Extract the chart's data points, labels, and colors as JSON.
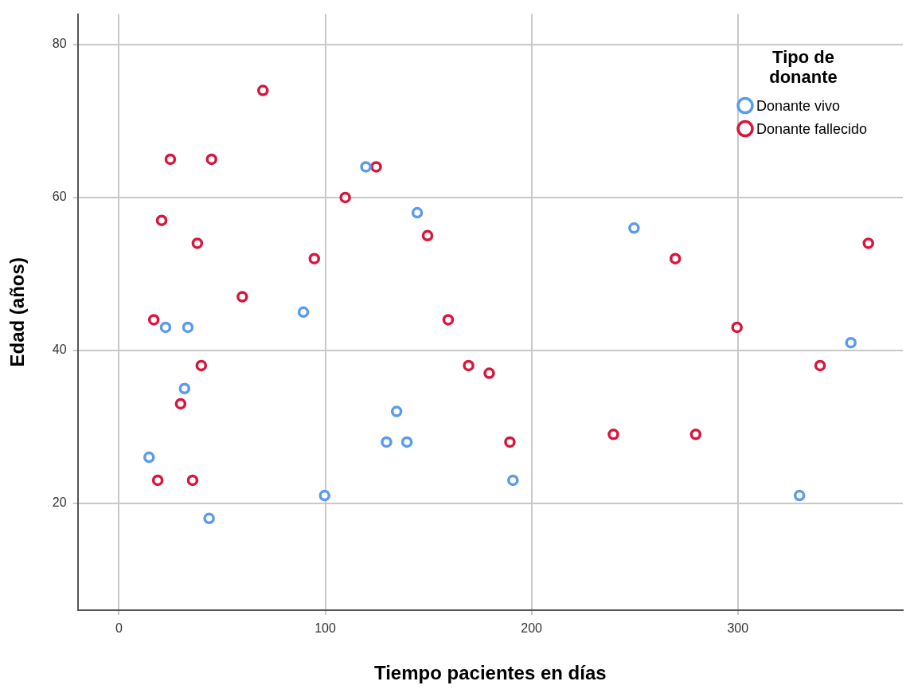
{
  "chart_data": {
    "type": "scatter",
    "xlabel": "Tiempo pacientes en días",
    "ylabel": "Edad (años)",
    "legend_title": "Tipo de donante",
    "xlim": [
      -20,
      380
    ],
    "ylim": [
      6,
      84
    ],
    "xticks": [
      0,
      100,
      200,
      300
    ],
    "yticks": [
      20,
      40,
      60,
      80
    ],
    "grid": true,
    "legend": "top right",
    "marker": "circle",
    "series": [
      {
        "name": "Donante vivo",
        "color": "#5b9bec",
        "x": [
          14.6,
          22.6,
          33.4,
          31.8,
          43.7,
          89.4,
          99.7,
          119.7,
          129.7,
          134.6,
          139.6,
          144.6,
          191,
          249.7,
          329.9,
          354.8
        ],
        "values": [
          26,
          43,
          43,
          35,
          18,
          45,
          21,
          64,
          28,
          32,
          28,
          58,
          23,
          56,
          21,
          41
        ]
      },
      {
        "name": "Donante fallecido",
        "color": "#d8163c",
        "x": [
          18.8,
          16.9,
          20.7,
          24.9,
          29.9,
          35.7,
          38,
          39.9,
          44.9,
          59.8,
          69.8,
          94.7,
          109.7,
          124.7,
          149.6,
          159.6,
          169.5,
          179.5,
          189.5,
          239.7,
          269.7,
          279.6,
          299.6,
          339.9,
          363.3
        ],
        "values": [
          23,
          44,
          57,
          65,
          33,
          23,
          54,
          38,
          65,
          47,
          74,
          52,
          60,
          64,
          55,
          44,
          38,
          37,
          28,
          29,
          52,
          29,
          43,
          38,
          54
        ]
      }
    ]
  }
}
